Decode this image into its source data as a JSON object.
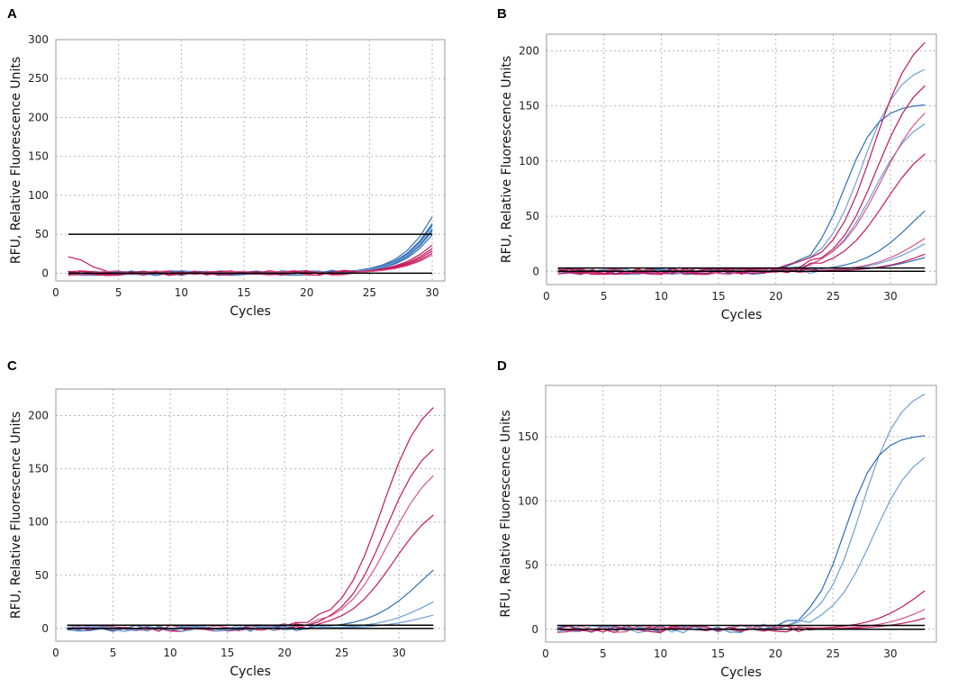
{
  "figure": {
    "panel_labels": [
      "A",
      "B",
      "C",
      "D"
    ]
  },
  "colors": {
    "blue": "#2e6fb5",
    "blue_light": "#6f9fd6",
    "magenta": "#c2185b",
    "magenta_light": "#d6578a",
    "threshold": "#000000"
  },
  "chart_data": [
    {
      "panel": "A",
      "type": "line",
      "xlabel": "Cycles",
      "ylabel": "RFU, Relative Fluorescence Units",
      "xlim": [
        0,
        31
      ],
      "ylim": [
        -10,
        300
      ],
      "xticks": [
        0,
        5,
        10,
        15,
        20,
        25,
        30
      ],
      "yticks": [
        0,
        50,
        100,
        150,
        200,
        250,
        300
      ],
      "grid": true,
      "thresholds": [
        50,
        0
      ],
      "series_curves": [
        {
          "color": "blue",
          "plateau": 290,
          "mid": 32.0,
          "k": 0.55
        },
        {
          "color": "blue",
          "plateau": 255,
          "mid": 32.0,
          "k": 0.55
        },
        {
          "color": "blue",
          "plateau": 245,
          "mid": 32.0,
          "k": 0.55
        },
        {
          "color": "blue",
          "plateau": 232,
          "mid": 32.1,
          "k": 0.55
        },
        {
          "color": "blue",
          "plateau": 225,
          "mid": 32.1,
          "k": 0.55
        },
        {
          "color": "blue",
          "plateau": 215,
          "mid": 32.2,
          "k": 0.55
        },
        {
          "color": "blue_light",
          "plateau": 240,
          "mid": 32.1,
          "k": 0.55
        },
        {
          "color": "magenta",
          "plateau": 118,
          "mid": 31.5,
          "k": 0.55
        },
        {
          "color": "magenta",
          "plateau": 108,
          "mid": 31.6,
          "k": 0.55
        },
        {
          "color": "magenta",
          "plateau": 102,
          "mid": 31.7,
          "k": 0.55
        },
        {
          "color": "magenta",
          "plateau": 95,
          "mid": 31.8,
          "k": 0.55
        },
        {
          "color": "magenta_light",
          "plateau": 90,
          "mid": 31.9,
          "k": 0.55
        }
      ],
      "early_artifact": {
        "x": [
          1,
          2,
          3,
          4
        ],
        "y": [
          21,
          17,
          8,
          3
        ]
      }
    },
    {
      "panel": "B",
      "type": "line",
      "xlabel": "Cycles",
      "ylabel": "RFU, Relative Fluorescence Units",
      "xlim": [
        0,
        34
      ],
      "ylim": [
        -12,
        215
      ],
      "xticks": [
        0,
        5,
        10,
        15,
        20,
        25,
        30
      ],
      "yticks": [
        0,
        50,
        100,
        150,
        200
      ],
      "grid": true,
      "thresholds": [
        3,
        0
      ],
      "series_curves": [
        {
          "color": "blue_light",
          "plateau": 190,
          "mid": 27.5,
          "k": 0.6
        },
        {
          "color": "blue",
          "plateau": 152,
          "mid": 26.0,
          "k": 0.7
        },
        {
          "color": "blue_light",
          "plateau": 145,
          "mid": 28.5,
          "k": 0.55
        },
        {
          "color": "blue",
          "plateau": 90,
          "mid": 32.0,
          "k": 0.45
        },
        {
          "color": "blue_light",
          "plateau": 50,
          "mid": 33.0,
          "k": 0.45
        },
        {
          "color": "blue",
          "plateau": 25,
          "mid": 33.0,
          "k": 0.45
        },
        {
          "color": "magenta",
          "plateau": 225,
          "mid": 28.5,
          "k": 0.55
        },
        {
          "color": "magenta",
          "plateau": 185,
          "mid": 28.8,
          "k": 0.55
        },
        {
          "color": "magenta_light",
          "plateau": 165,
          "mid": 29.2,
          "k": 0.5
        },
        {
          "color": "magenta",
          "plateau": 125,
          "mid": 29.5,
          "k": 0.5
        },
        {
          "color": "magenta_light",
          "plateau": 60,
          "mid": 33.0,
          "k": 0.45
        },
        {
          "color": "magenta",
          "plateau": 40,
          "mid": 34.0,
          "k": 0.45
        }
      ]
    },
    {
      "panel": "C",
      "type": "line",
      "xlabel": "Cycles",
      "ylabel": "RFU, Relative Fluorescence Units",
      "xlim": [
        0,
        34
      ],
      "ylim": [
        -12,
        225
      ],
      "xticks": [
        0,
        5,
        10,
        15,
        20,
        25,
        30
      ],
      "yticks": [
        0,
        50,
        100,
        150,
        200
      ],
      "grid": true,
      "thresholds": [
        3,
        0
      ],
      "series_curves": [
        {
          "color": "magenta",
          "plateau": 225,
          "mid": 28.5,
          "k": 0.55
        },
        {
          "color": "magenta",
          "plateau": 185,
          "mid": 28.8,
          "k": 0.55
        },
        {
          "color": "magenta_light",
          "plateau": 165,
          "mid": 29.2,
          "k": 0.5
        },
        {
          "color": "magenta",
          "plateau": 125,
          "mid": 29.5,
          "k": 0.5
        },
        {
          "color": "blue",
          "plateau": 90,
          "mid": 32.0,
          "k": 0.45
        },
        {
          "color": "blue_light",
          "plateau": 50,
          "mid": 33.0,
          "k": 0.45
        },
        {
          "color": "blue_light",
          "plateau": 25,
          "mid": 33.0,
          "k": 0.45
        }
      ]
    },
    {
      "panel": "D",
      "type": "line",
      "xlabel": "Cycles",
      "ylabel": "RFU, Relative Fluorescence Units",
      "xlim": [
        0,
        34
      ],
      "ylim": [
        -10,
        190
      ],
      "xticks": [
        0,
        5,
        10,
        15,
        20,
        25,
        30
      ],
      "yticks": [
        0,
        50,
        100,
        150
      ],
      "grid": true,
      "thresholds": [
        3,
        0
      ],
      "series_curves": [
        {
          "color": "blue_light",
          "plateau": 190,
          "mid": 27.5,
          "k": 0.6
        },
        {
          "color": "blue",
          "plateau": 152,
          "mid": 26.0,
          "k": 0.7
        },
        {
          "color": "blue_light",
          "plateau": 145,
          "mid": 28.5,
          "k": 0.55
        },
        {
          "color": "magenta",
          "plateau": 60,
          "mid": 33.0,
          "k": 0.45
        },
        {
          "color": "magenta_light",
          "plateau": 40,
          "mid": 34.0,
          "k": 0.45
        },
        {
          "color": "magenta",
          "plateau": 22,
          "mid": 34.0,
          "k": 0.45
        }
      ]
    }
  ]
}
